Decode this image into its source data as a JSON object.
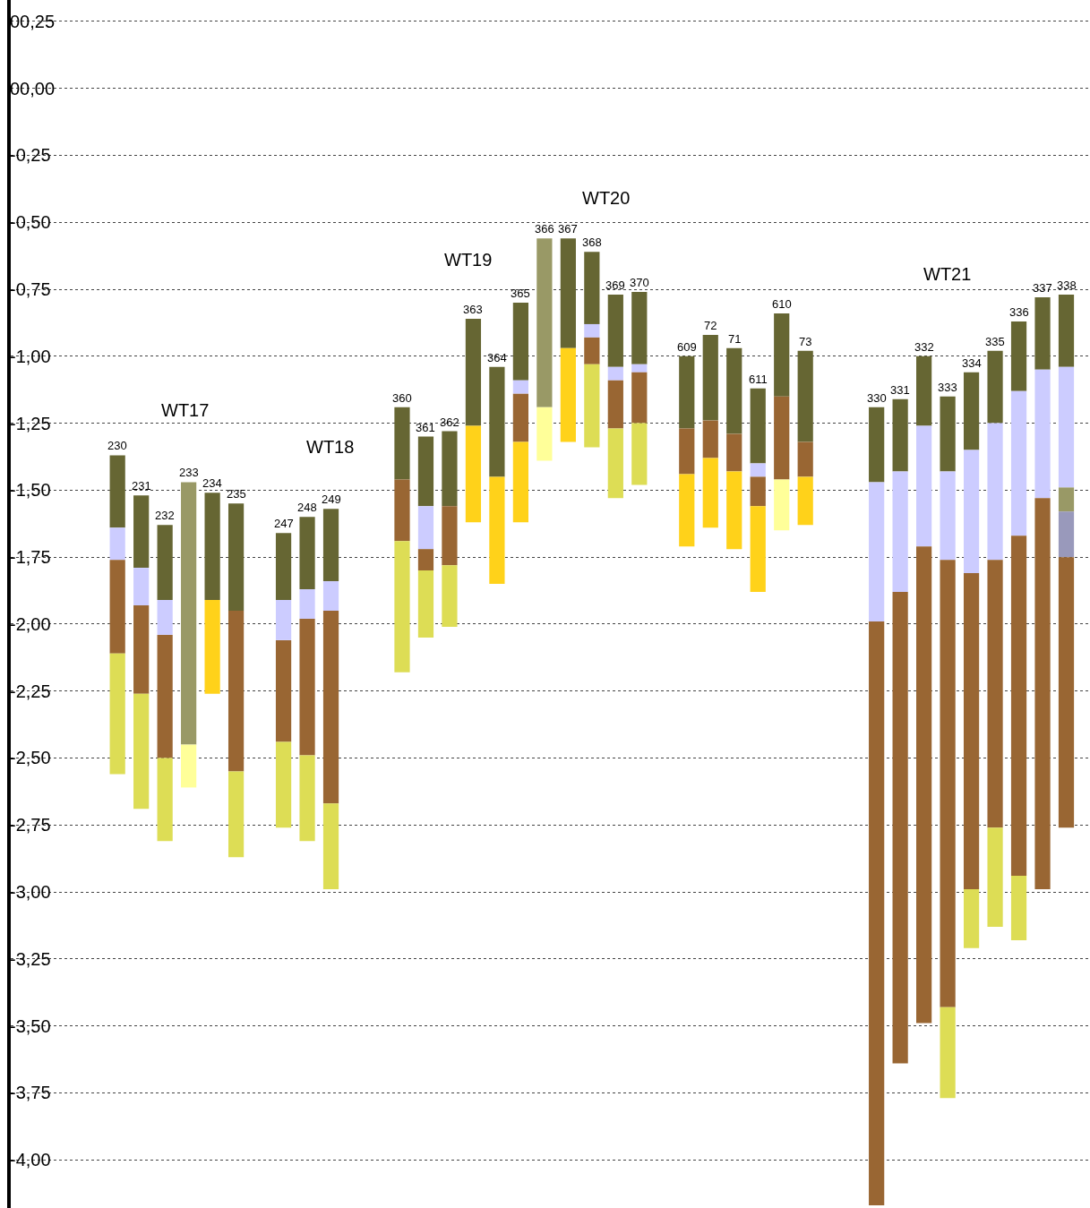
{
  "chart_data": {
    "type": "bar",
    "categories": [
      "230",
      "231",
      "232",
      "233",
      "234",
      "235",
      null,
      "247",
      "248",
      "249",
      null,
      null,
      "360",
      "361",
      "362",
      "363",
      "364",
      "365",
      "366",
      "367",
      "368",
      "369",
      "370",
      null,
      "609",
      "72",
      "71",
      "611",
      "610",
      "73",
      null,
      null,
      "330",
      "331",
      "332",
      "333",
      "334",
      "335",
      "336",
      "337",
      "338"
    ],
    "series": [
      {
        "color": "#666633",
        "values": [
          -0.27,
          -0.27,
          -0.28,
          null,
          -0.4,
          -0.4,
          null,
          -0.25,
          -0.27,
          -0.27,
          null,
          null,
          -0.27,
          -0.26,
          -0.28,
          -0.4,
          -0.41,
          -0.29,
          null,
          -0.41,
          -0.27,
          -0.27,
          -0.27,
          null,
          -0.27,
          -0.32,
          -0.32,
          -0.28,
          -0.31,
          -0.34,
          null,
          null,
          -0.28,
          -0.27,
          -0.26,
          -0.28,
          -0.29,
          -0.27,
          -0.26,
          -0.27,
          -0.27
        ],
        "base": [
          -1.37,
          -1.52,
          -1.63,
          null,
          -1.51,
          -1.55,
          null,
          -1.66,
          -1.6,
          -1.57,
          null,
          null,
          -1.19,
          -1.3,
          -1.28,
          -0.86,
          -1.04,
          -0.8,
          null,
          -0.56,
          -0.61,
          -0.77,
          -0.76,
          null,
          -1.0,
          -0.92,
          -0.97,
          -1.12,
          -0.84,
          -0.98,
          null,
          null,
          -1.19,
          -1.16,
          -1.0,
          -1.15,
          -1.06,
          -0.98,
          -0.87,
          -0.78,
          -0.77
        ]
      },
      {
        "color": "#ccccff",
        "values": [
          -0.12,
          -0.14,
          -0.13,
          null,
          null,
          null,
          null,
          -0.15,
          -0.11,
          -0.11,
          null,
          null,
          null,
          -0.16,
          null,
          null,
          null,
          -0.05,
          null,
          null,
          -0.05,
          -0.05,
          -0.03,
          null,
          null,
          null,
          null,
          -0.05,
          null,
          null,
          null,
          null,
          -0.52,
          -0.45,
          -0.45,
          -0.33,
          -0.46,
          -0.51,
          -0.54,
          -0.48,
          -0.45
        ],
        "base": [
          -1.64,
          -1.79,
          -1.91,
          null,
          null,
          null,
          null,
          -1.91,
          -1.87,
          -1.84,
          null,
          null,
          null,
          -1.56,
          null,
          null,
          null,
          -1.09,
          null,
          null,
          -0.88,
          -1.04,
          -1.03,
          null,
          null,
          null,
          null,
          -1.4,
          null,
          null,
          null,
          null,
          -1.47,
          -1.43,
          -1.26,
          -1.43,
          -1.35,
          -1.25,
          -1.13,
          -1.05,
          -1.04
        ]
      },
      {
        "color": "#999966",
        "values": [
          null,
          null,
          null,
          -0.98,
          null,
          null,
          null,
          null,
          null,
          null,
          null,
          null,
          null,
          null,
          null,
          null,
          null,
          null,
          -0.63,
          null,
          null,
          null,
          null,
          null,
          null,
          null,
          null,
          null,
          null,
          null,
          null,
          null,
          null,
          null,
          null,
          null,
          null,
          null,
          null,
          null,
          -0.09
        ],
        "base": [
          null,
          null,
          null,
          -1.47,
          null,
          null,
          null,
          null,
          null,
          null,
          null,
          null,
          null,
          null,
          null,
          null,
          null,
          null,
          -0.56,
          null,
          null,
          null,
          null,
          null,
          null,
          null,
          null,
          null,
          null,
          null,
          null,
          null,
          null,
          null,
          null,
          null,
          null,
          null,
          null,
          null,
          -1.49
        ]
      },
      {
        "color": "#9999bb",
        "values": [
          null,
          null,
          null,
          null,
          null,
          null,
          null,
          null,
          null,
          null,
          null,
          null,
          null,
          null,
          null,
          null,
          null,
          null,
          null,
          null,
          null,
          null,
          null,
          null,
          null,
          null,
          null,
          null,
          null,
          null,
          null,
          null,
          null,
          null,
          null,
          null,
          null,
          null,
          null,
          null,
          -0.17
        ],
        "base": [
          null,
          null,
          null,
          null,
          null,
          null,
          null,
          null,
          null,
          null,
          null,
          null,
          null,
          null,
          null,
          null,
          null,
          null,
          null,
          null,
          null,
          null,
          null,
          null,
          null,
          null,
          null,
          null,
          null,
          null,
          null,
          null,
          null,
          null,
          null,
          null,
          null,
          null,
          null,
          null,
          -1.58
        ]
      },
      {
        "color": "#996633",
        "values": [
          -0.35,
          -0.33,
          -0.46,
          null,
          null,
          -0.6,
          null,
          -0.38,
          -0.51,
          -0.72,
          null,
          null,
          -0.23,
          -0.08,
          -0.22,
          null,
          null,
          -0.18,
          null,
          null,
          -0.1,
          -0.18,
          -0.19,
          null,
          -0.17,
          -0.14,
          -0.14,
          -0.11,
          -0.31,
          -0.13,
          null,
          null,
          -2.18,
          -1.76,
          -1.78,
          -1.67,
          -1.18,
          -1.0,
          -1.27,
          -1.46,
          -1.01
        ],
        "base": [
          -1.76,
          -1.93,
          -2.04,
          null,
          null,
          -1.95,
          null,
          -2.06,
          -1.98,
          -1.95,
          null,
          null,
          -1.46,
          -1.72,
          -1.56,
          null,
          null,
          -1.14,
          null,
          null,
          -0.93,
          -1.09,
          -1.06,
          null,
          -1.27,
          -1.24,
          -1.29,
          -1.45,
          -1.15,
          -1.32,
          null,
          null,
          -1.99,
          -1.88,
          -1.71,
          -1.76,
          -1.81,
          -1.76,
          -1.67,
          -1.53,
          -1.75
        ]
      },
      {
        "color": "#ffd21a",
        "values": [
          null,
          null,
          null,
          null,
          -0.35,
          null,
          null,
          null,
          null,
          null,
          null,
          null,
          null,
          null,
          null,
          -0.36,
          -0.4,
          -0.3,
          null,
          -0.35,
          null,
          null,
          null,
          null,
          -0.27,
          -0.26,
          -0.29,
          -0.32,
          null,
          -0.18,
          null,
          null,
          null,
          null,
          null,
          null,
          null,
          null,
          null,
          null,
          null
        ],
        "base": [
          null,
          null,
          null,
          null,
          -1.91,
          null,
          null,
          null,
          null,
          null,
          null,
          null,
          null,
          null,
          null,
          -1.26,
          -1.45,
          -1.32,
          null,
          -0.97,
          null,
          null,
          null,
          null,
          -1.44,
          -1.38,
          -1.43,
          -1.56,
          null,
          -1.45,
          null,
          null,
          null,
          null,
          null,
          null,
          null,
          null,
          null,
          null,
          null
        ]
      },
      {
        "color": "#dddd55",
        "values": [
          -0.45,
          -0.43,
          -0.31,
          null,
          null,
          -0.32,
          null,
          -0.32,
          -0.32,
          -0.32,
          null,
          null,
          -0.49,
          -0.25,
          -0.23,
          null,
          null,
          null,
          null,
          null,
          -0.31,
          -0.26,
          -0.23,
          null,
          null,
          null,
          null,
          null,
          null,
          null,
          null,
          null,
          null,
          null,
          null,
          -0.34,
          -0.22,
          -0.37,
          -0.24,
          null,
          null
        ],
        "base": [
          -2.11,
          -2.26,
          -2.5,
          null,
          null,
          -2.55,
          null,
          -2.44,
          -2.49,
          -2.67,
          null,
          null,
          -1.69,
          -1.8,
          -1.78,
          null,
          null,
          null,
          null,
          null,
          -1.03,
          -1.27,
          -1.25,
          null,
          null,
          null,
          null,
          null,
          null,
          null,
          null,
          null,
          null,
          null,
          null,
          -3.43,
          -2.99,
          -2.76,
          -2.94,
          null,
          null
        ]
      },
      {
        "color": "#ffff99",
        "values": [
          null,
          null,
          null,
          -0.16,
          null,
          null,
          null,
          null,
          null,
          null,
          null,
          null,
          null,
          null,
          null,
          null,
          null,
          null,
          -0.2,
          null,
          null,
          null,
          null,
          null,
          null,
          null,
          null,
          null,
          -0.19,
          null,
          null,
          null,
          null,
          null,
          null,
          null,
          null,
          null,
          null,
          null,
          null
        ],
        "base": [
          null,
          null,
          null,
          -2.45,
          null,
          null,
          null,
          null,
          null,
          null,
          null,
          null,
          null,
          null,
          null,
          null,
          null,
          null,
          -1.19,
          null,
          null,
          null,
          null,
          null,
          null,
          null,
          null,
          null,
          -1.46,
          null,
          null,
          null,
          null,
          null,
          null,
          null,
          null,
          null,
          null,
          null,
          null
        ]
      }
    ],
    "ylim": [
      -4.18,
      0.33
    ],
    "yticks": [
      {
        "value": 0.25,
        "label": "00,25"
      },
      {
        "value": 0,
        "label": "00,00"
      },
      {
        "value": -0.25,
        "label": "-0,25"
      },
      {
        "value": -0.5,
        "label": "-0,50"
      },
      {
        "value": -0.75,
        "label": "-0,75"
      },
      {
        "value": -1,
        "label": "-1,00"
      },
      {
        "value": -1.25,
        "label": "-1,25"
      },
      {
        "value": -1.5,
        "label": "-1,50"
      },
      {
        "value": -1.75,
        "label": "-1,75"
      },
      {
        "value": -2,
        "label": "-2,00"
      },
      {
        "value": -2.25,
        "label": "-2,25"
      },
      {
        "value": -2.5,
        "label": "-2,50"
      },
      {
        "value": -2.75,
        "label": "-2,75"
      },
      {
        "value": -3,
        "label": "-3,00"
      },
      {
        "value": -3.25,
        "label": "-3,25"
      },
      {
        "value": -3.5,
        "label": "-3,50"
      },
      {
        "value": -3.75,
        "label": "-3,75"
      },
      {
        "value": -4,
        "label": "-4,00"
      }
    ],
    "grid": "y",
    "annotations": [
      "WT17",
      "WT18",
      "WT19",
      "WT20",
      "WT21"
    ]
  }
}
